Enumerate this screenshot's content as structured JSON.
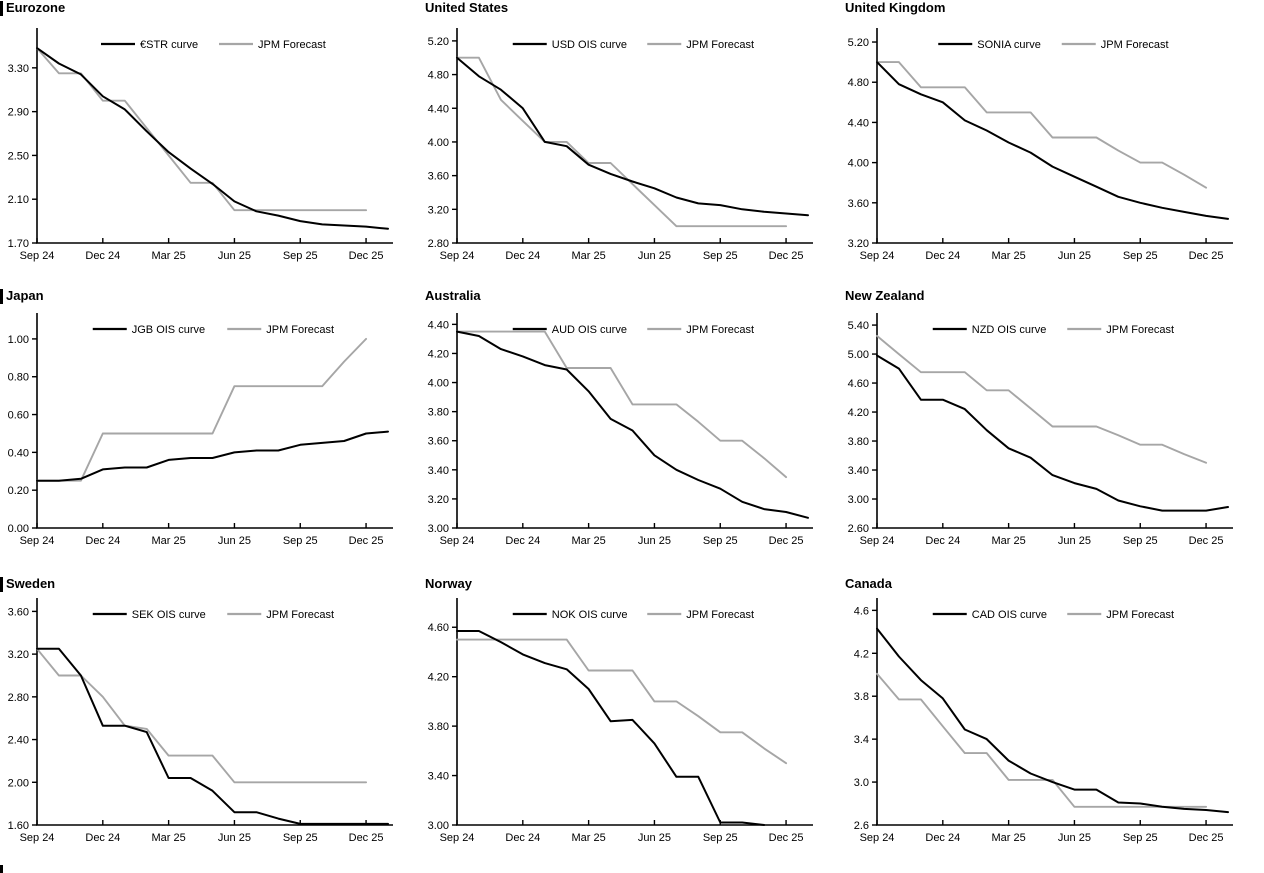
{
  "page": {
    "background": "#ffffff"
  },
  "colors": {
    "black": "#000000",
    "gray": "#a6a6a6",
    "axis": "#000000",
    "text": "#000000"
  },
  "x_axis": {
    "tick_months": [
      0,
      3,
      6,
      9,
      12,
      15
    ],
    "tick_labels": [
      "Sep 24",
      "Dec 24",
      "Mar 25",
      "Jun 25",
      "Sep 25",
      "Dec 25"
    ],
    "max_month": 16
  },
  "chart_data": [
    {
      "type": "line",
      "title": "Eurozone",
      "ylim": [
        1.7,
        3.6
      ],
      "ytick_values": [
        1.7,
        2.1,
        2.5,
        2.9,
        3.3
      ],
      "ytick_labels": [
        "1.70",
        "2.10",
        "2.50",
        "2.90",
        "3.30"
      ],
      "legend_position": "top-center",
      "grid": false,
      "series": [
        {
          "name": "€STR curve",
          "color": "black",
          "values": [
            3.48,
            3.34,
            3.24,
            3.04,
            2.92,
            2.72,
            2.53,
            2.38,
            2.24,
            2.08,
            1.99,
            1.95,
            1.9,
            1.87,
            1.86,
            1.85,
            1.83
          ]
        },
        {
          "name": "JPM Forecast",
          "color": "gray",
          "values": [
            3.48,
            3.25,
            3.25,
            3.0,
            3.0,
            2.75,
            2.5,
            2.25,
            2.25,
            2.0,
            2.0,
            2.0,
            2.0,
            2.0,
            2.0,
            2.0
          ]
        }
      ]
    },
    {
      "type": "line",
      "title": "United States",
      "ylim": [
        2.8,
        5.27
      ],
      "ytick_values": [
        2.8,
        3.2,
        3.6,
        4.0,
        4.4,
        4.8,
        5.2
      ],
      "ytick_labels": [
        "2.80",
        "3.20",
        "3.60",
        "4.00",
        "4.40",
        "4.80",
        "5.20"
      ],
      "legend_position": "top-center",
      "grid": false,
      "series": [
        {
          "name": "USD OIS curve",
          "color": "black",
          "values": [
            5.0,
            4.78,
            4.62,
            4.4,
            4.0,
            3.95,
            3.73,
            3.62,
            3.53,
            3.45,
            3.34,
            3.27,
            3.25,
            3.2,
            3.17,
            3.15,
            3.13
          ]
        },
        {
          "name": "JPM Forecast",
          "color": "gray",
          "values": [
            5.0,
            5.0,
            4.5,
            4.25,
            4.0,
            4.0,
            3.75,
            3.75,
            3.5,
            3.25,
            3.0,
            3.0,
            3.0,
            3.0,
            3.0,
            3.0
          ]
        }
      ]
    },
    {
      "type": "line",
      "title": "United Kingdom",
      "ylim": [
        3.2,
        5.27
      ],
      "ytick_values": [
        3.2,
        3.6,
        4.0,
        4.4,
        4.8,
        5.2
      ],
      "ytick_labels": [
        "3.20",
        "3.60",
        "4.00",
        "4.40",
        "4.80",
        "5.20"
      ],
      "legend_position": "top-center",
      "grid": false,
      "series": [
        {
          "name": "SONIA curve",
          "color": "black",
          "values": [
            5.0,
            4.78,
            4.68,
            4.6,
            4.42,
            4.32,
            4.2,
            4.1,
            3.96,
            3.86,
            3.76,
            3.66,
            3.6,
            3.55,
            3.51,
            3.47,
            3.44
          ]
        },
        {
          "name": "JPM Forecast",
          "color": "gray",
          "values": [
            5.0,
            5.0,
            4.75,
            4.75,
            4.75,
            4.5,
            4.5,
            4.5,
            4.25,
            4.25,
            4.25,
            4.12,
            4.0,
            4.0,
            3.88,
            3.75
          ]
        }
      ]
    },
    {
      "type": "line",
      "title": "Japan",
      "ylim": [
        0.0,
        1.1
      ],
      "ytick_values": [
        0.0,
        0.2,
        0.4,
        0.6,
        0.8,
        1.0
      ],
      "ytick_labels": [
        "0.00",
        "0.20",
        "0.40",
        "0.60",
        "0.80",
        "1.00"
      ],
      "legend_position": "top-center",
      "grid": false,
      "series": [
        {
          "name": "JGB OIS curve",
          "color": "black",
          "values": [
            0.25,
            0.25,
            0.26,
            0.31,
            0.32,
            0.32,
            0.36,
            0.37,
            0.37,
            0.4,
            0.41,
            0.41,
            0.44,
            0.45,
            0.46,
            0.5,
            0.51
          ]
        },
        {
          "name": "JPM Forecast",
          "color": "gray",
          "values": [
            0.25,
            0.25,
            0.25,
            0.5,
            0.5,
            0.5,
            0.5,
            0.5,
            0.5,
            0.75,
            0.75,
            0.75,
            0.75,
            0.75,
            0.88,
            1.0
          ]
        }
      ]
    },
    {
      "type": "line",
      "title": "Australia",
      "ylim": [
        3.0,
        4.43
      ],
      "ytick_values": [
        3.0,
        3.2,
        3.4,
        3.6,
        3.8,
        4.0,
        4.2,
        4.4
      ],
      "ytick_labels": [
        "3.00",
        "3.20",
        "3.40",
        "3.60",
        "3.80",
        "4.00",
        "4.20",
        "4.40"
      ],
      "legend_position": "top-center",
      "grid": false,
      "series": [
        {
          "name": "AUD OIS curve",
          "color": "black",
          "values": [
            4.35,
            4.32,
            4.23,
            4.18,
            4.12,
            4.09,
            3.94,
            3.75,
            3.67,
            3.5,
            3.4,
            3.33,
            3.27,
            3.18,
            3.13,
            3.11,
            3.07
          ]
        },
        {
          "name": "JPM Forecast",
          "color": "gray",
          "values": [
            4.35,
            4.35,
            4.35,
            4.35,
            4.35,
            4.1,
            4.1,
            4.1,
            3.85,
            3.85,
            3.85,
            3.73,
            3.6,
            3.6,
            3.48,
            3.35
          ]
        }
      ]
    },
    {
      "type": "line",
      "title": "New Zealand",
      "ylim": [
        2.6,
        5.47
      ],
      "ytick_values": [
        2.6,
        3.0,
        3.4,
        3.8,
        4.2,
        4.6,
        5.0,
        5.4
      ],
      "ytick_labels": [
        "2.60",
        "3.00",
        "3.40",
        "3.80",
        "4.20",
        "4.60",
        "5.00",
        "5.40"
      ],
      "legend_position": "top-center",
      "grid": false,
      "series": [
        {
          "name": "NZD OIS curve",
          "color": "black",
          "values": [
            4.98,
            4.8,
            4.37,
            4.37,
            4.24,
            3.95,
            3.7,
            3.57,
            3.33,
            3.22,
            3.14,
            2.98,
            2.9,
            2.84,
            2.84,
            2.84,
            2.89
          ]
        },
        {
          "name": "JPM Forecast",
          "color": "gray",
          "values": [
            5.25,
            5.0,
            4.75,
            4.75,
            4.75,
            4.5,
            4.5,
            4.25,
            4.0,
            4.0,
            4.0,
            3.88,
            3.75,
            3.75,
            3.62,
            3.5
          ]
        }
      ]
    },
    {
      "type": "line",
      "title": "Sweden",
      "ylim": [
        1.6,
        3.66
      ],
      "ytick_values": [
        1.6,
        2.0,
        2.4,
        2.8,
        3.2,
        3.6
      ],
      "ytick_labels": [
        "1.60",
        "2.00",
        "2.40",
        "2.80",
        "3.20",
        "3.60"
      ],
      "legend_position": "top-center",
      "grid": false,
      "series": [
        {
          "name": "SEK OIS curve",
          "color": "black",
          "values": [
            3.25,
            3.25,
            3.0,
            2.53,
            2.53,
            2.47,
            2.04,
            2.04,
            1.92,
            1.72,
            1.72,
            1.66,
            1.61,
            1.61,
            1.61,
            1.61,
            1.61
          ]
        },
        {
          "name": "JPM Forecast",
          "color": "gray",
          "values": [
            3.25,
            3.0,
            3.0,
            2.8,
            2.53,
            2.5,
            2.25,
            2.25,
            2.25,
            2.0,
            2.0,
            2.0,
            2.0,
            2.0,
            2.0,
            2.0
          ]
        }
      ]
    },
    {
      "type": "line",
      "title": "Norway",
      "ylim": [
        3.0,
        4.78
      ],
      "ytick_values": [
        3.0,
        3.4,
        3.8,
        4.2,
        4.6
      ],
      "ytick_labels": [
        "3.00",
        "3.40",
        "3.80",
        "4.20",
        "4.60"
      ],
      "legend_position": "top-center",
      "grid": false,
      "series": [
        {
          "name": "NOK OIS curve",
          "color": "black",
          "values": [
            4.57,
            4.57,
            4.48,
            4.38,
            4.31,
            4.26,
            4.1,
            3.84,
            3.85,
            3.66,
            3.39,
            3.39,
            3.02,
            3.02,
            3.0
          ]
        },
        {
          "name": "JPM Forecast",
          "color": "gray",
          "values": [
            4.5,
            4.5,
            4.5,
            4.5,
            4.5,
            4.5,
            4.25,
            4.25,
            4.25,
            4.0,
            4.0,
            3.88,
            3.75,
            3.75,
            3.62,
            3.5
          ]
        }
      ]
    },
    {
      "type": "line",
      "title": "Canada",
      "ylim": [
        2.6,
        4.65
      ],
      "ytick_values": [
        2.6,
        3.0,
        3.4,
        3.8,
        4.2,
        4.6
      ],
      "ytick_labels": [
        "2.6",
        "3.0",
        "3.4",
        "3.8",
        "4.2",
        "4.6"
      ],
      "legend_position": "top-center",
      "grid": false,
      "series": [
        {
          "name": "CAD OIS curve",
          "color": "black",
          "values": [
            4.43,
            4.17,
            3.95,
            3.78,
            3.49,
            3.4,
            3.2,
            3.08,
            3.0,
            2.93,
            2.93,
            2.81,
            2.8,
            2.77,
            2.75,
            2.74,
            2.72
          ]
        },
        {
          "name": "JPM Forecast",
          "color": "gray",
          "values": [
            4.01,
            3.77,
            3.77,
            3.52,
            3.27,
            3.27,
            3.02,
            3.02,
            3.02,
            2.77,
            2.77,
            2.77,
            2.77,
            2.77,
            2.77,
            2.77
          ]
        }
      ]
    }
  ]
}
